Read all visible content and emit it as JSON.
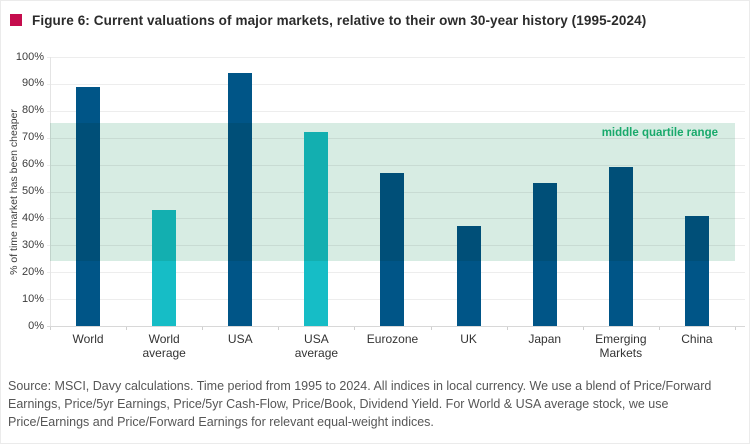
{
  "figure": {
    "title": "Figure 6: Current valuations of major markets, relative to their own 30-year history (1995-2024)",
    "source_note": "Source: MSCI, Davy calculations. Time period from 1995 to 2024.  All indices in local currency. We use a blend of Price/Forward Earnings, Price/5yr Earnings, Price/5yr Cash-Flow, Price/Book, Dividend Yield. For World & USA average stock, we use Price/Earnings and Price/Forward Earnings for relevant equal-weight indices."
  },
  "colors": {
    "accent_bullet": "#c50d4d",
    "bar_primary": "#005587",
    "bar_average": "#16bdc6",
    "band_fill": "#d7ece3",
    "band_label_text": "#18a96b",
    "gridline": "#ededed",
    "title_text": "#2b2b2b",
    "footer_text": "#565656"
  },
  "chart_data": {
    "type": "bar",
    "title": "Current valuations of major markets, relative to their own 30-year history (1995-2024)",
    "categories": [
      "World",
      "World average",
      "USA",
      "USA average",
      "Eurozone",
      "UK",
      "Japan",
      "Emerging Markets",
      "China"
    ],
    "values": [
      89,
      43,
      94,
      72,
      57,
      37,
      53,
      59,
      41
    ],
    "average_highlight_indexes": [
      1,
      3
    ],
    "xlabel": "",
    "ylabel": "% of time market has been cheaper",
    "ylim": [
      0,
      100
    ],
    "ytick_step": 10,
    "ytick_suffix": "%",
    "grid": true,
    "legend": "none",
    "band": {
      "label": "middle quartile range",
      "from": 24,
      "to": 75.5
    }
  }
}
